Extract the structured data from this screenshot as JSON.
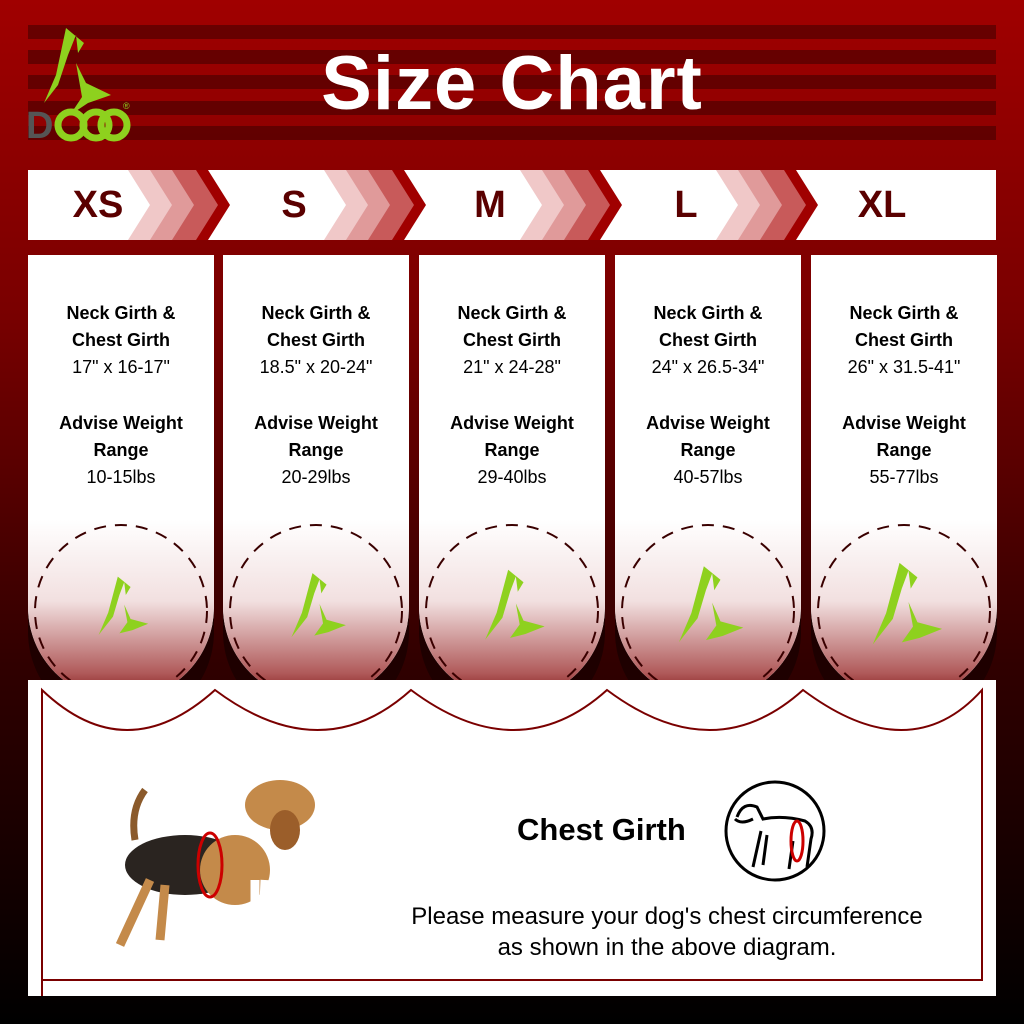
{
  "header": {
    "title": "Size Chart",
    "logo_text": "DOCO",
    "logo_mark": "®"
  },
  "colors": {
    "brand_green": "#8ed11e",
    "accent_red": "#9a0000"
  },
  "sizes": [
    {
      "label": "XS",
      "girth_label_1": "Neck Girth &",
      "girth_label_2": "Chest Girth",
      "girth": "17\" x 16-17\"",
      "weight_label_1": "Advise Weight",
      "weight_label_2": "Range",
      "weight": "10-15lbs"
    },
    {
      "label": "S",
      "girth_label_1": "Neck Girth &",
      "girth_label_2": "Chest Girth",
      "girth": "18.5\" x 20-24\"",
      "weight_label_1": "Advise Weight",
      "weight_label_2": "Range",
      "weight": "20-29lbs"
    },
    {
      "label": "M",
      "girth_label_1": "Neck Girth &",
      "girth_label_2": "Chest Girth",
      "girth": "21\" x 24-28\"",
      "weight_label_1": "Advise Weight",
      "weight_label_2": "Range",
      "weight": "29-40lbs"
    },
    {
      "label": "L",
      "girth_label_1": "Neck Girth &",
      "girth_label_2": "Chest Girth",
      "girth": "24\" x 26.5-34\"",
      "weight_label_1": "Advise Weight",
      "weight_label_2": "Range",
      "weight": "40-57lbs"
    },
    {
      "label": "XL",
      "girth_label_1": "Neck Girth &",
      "girth_label_2": "Chest Girth",
      "girth": "26\" x 31.5-41\"",
      "weight_label_1": "Advise Weight",
      "weight_label_2": "Range",
      "weight": "55-77lbs"
    }
  ],
  "measure": {
    "title": "Chest Girth",
    "note_line1": "Please measure your dog's chest circumference",
    "note_line2": "as shown in the above diagram."
  }
}
